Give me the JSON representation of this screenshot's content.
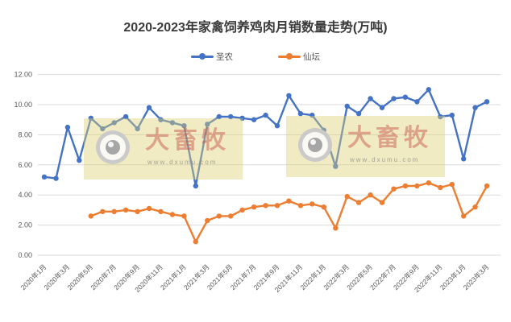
{
  "title": "2020-2023年家禽饲养鸡肉月销数量走势(万吨)",
  "legend": [
    {
      "label": "圣农",
      "color": "#4472C4"
    },
    {
      "label": "仙坛",
      "color": "#ED7D31"
    }
  ],
  "watermark": {
    "brand": "大畜牧",
    "url": "www.dxumu.com"
  },
  "colors": {
    "series_blue": "#4472C4",
    "series_orange": "#ED7D31",
    "gridline": "#D9D9D9",
    "axis_text": "#595959",
    "title_text": "#3A3A3A"
  },
  "chart_data": {
    "type": "line",
    "title": "2020-2023年家禽饲养鸡肉月销数量走势(万吨)",
    "xlabel": "",
    "ylabel": "",
    "ylim": [
      0,
      12
    ],
    "grid": true,
    "legend_position": "top",
    "y_tick_labels": [
      "0.00",
      "2.00",
      "4.00",
      "6.00",
      "8.00",
      "10.00",
      "12.00"
    ],
    "x_tick_step": 2,
    "categories": [
      "2020年1月",
      "2020年2月",
      "2020年3月",
      "2020年4月",
      "2020年5月",
      "2020年6月",
      "2020年7月",
      "2020年8月",
      "2020年9月",
      "2020年10月",
      "2020年11月",
      "2020年12月",
      "2021年1月",
      "2021年2月",
      "2021年3月",
      "2021年4月",
      "2021年5月",
      "2021年6月",
      "2021年7月",
      "2021年8月",
      "2021年9月",
      "2021年10月",
      "2021年11月",
      "2021年12月",
      "2022年1月",
      "2022年2月",
      "2022年3月",
      "2022年4月",
      "2022年5月",
      "2022年6月",
      "2022年7月",
      "2022年8月",
      "2022年9月",
      "2022年10月",
      "2022年11月",
      "2022年12月",
      "2023年1月",
      "2023年2月",
      "2023年3月"
    ],
    "series": [
      {
        "name": "圣农",
        "color": "#4472C4",
        "values": [
          5.2,
          5.1,
          8.5,
          6.3,
          9.1,
          8.4,
          8.8,
          9.2,
          8.4,
          9.8,
          9.0,
          8.8,
          8.6,
          4.6,
          8.7,
          9.2,
          9.2,
          9.1,
          9.0,
          9.3,
          8.6,
          10.6,
          9.4,
          9.3,
          8.3,
          5.9,
          9.9,
          9.4,
          10.4,
          9.8,
          10.4,
          10.5,
          10.2,
          11.0,
          9.2,
          9.3,
          6.4,
          9.8,
          10.2
        ]
      },
      {
        "name": "仙坛",
        "color": "#ED7D31",
        "values": [
          null,
          null,
          null,
          null,
          2.6,
          2.9,
          2.9,
          3.0,
          2.9,
          3.1,
          2.9,
          2.7,
          2.6,
          0.9,
          2.3,
          2.6,
          2.6,
          3.0,
          3.2,
          3.3,
          3.3,
          3.6,
          3.3,
          3.4,
          3.2,
          1.8,
          3.9,
          3.5,
          4.0,
          3.5,
          4.4,
          4.6,
          4.6,
          4.8,
          4.5,
          4.7,
          2.6,
          3.2,
          4.6
        ]
      }
    ]
  }
}
